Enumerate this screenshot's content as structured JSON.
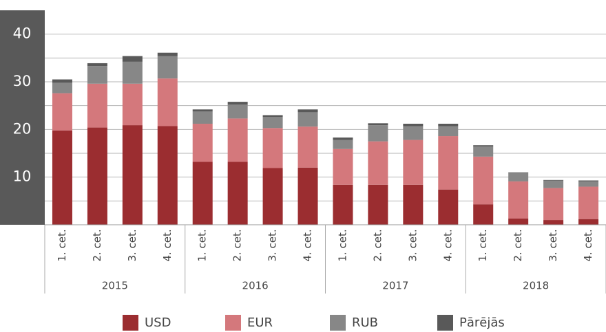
{
  "chart_data": {
    "type": "stacked_bar",
    "categories": [
      "1. cet.",
      "2. cet.",
      "3. cet.",
      "4. cet.",
      "1. cet.",
      "2. cet.",
      "3. cet.",
      "4. cet.",
      "1. cet.",
      "2. cet.",
      "3. cet.",
      "4. cet.",
      "1. cet.",
      "2. cet.",
      "3. cet.",
      "4. cet."
    ],
    "groups": [
      "2015",
      "2016",
      "2017",
      "2018"
    ],
    "series": [
      {
        "name": "USD",
        "color": "#9b2d30",
        "values": [
          19.8,
          20.4,
          20.9,
          20.7,
          13.2,
          13.2,
          11.9,
          12.0,
          8.4,
          8.4,
          8.4,
          7.4,
          4.3,
          1.3,
          1.0,
          1.2
        ]
      },
      {
        "name": "EUR",
        "color": "#d4787c",
        "values": [
          7.8,
          9.2,
          8.7,
          10.0,
          8.0,
          9.1,
          8.4,
          8.6,
          7.5,
          9.1,
          9.4,
          11.2,
          10.0,
          7.8,
          6.7,
          6.8
        ]
      },
      {
        "name": "RUB",
        "color": "#878787",
        "values": [
          2.2,
          3.7,
          4.6,
          4.7,
          2.6,
          2.9,
          2.3,
          3.0,
          1.9,
          3.4,
          2.9,
          2.1,
          2.1,
          1.8,
          1.6,
          1.1
        ]
      },
      {
        "name": "Pārējās",
        "color": "#595959",
        "values": [
          0.7,
          0.6,
          1.2,
          0.7,
          0.4,
          0.6,
          0.4,
          0.6,
          0.5,
          0.4,
          0.5,
          0.5,
          0.3,
          0.1,
          0.1,
          0.2
        ]
      }
    ],
    "ylim": [
      0,
      45
    ],
    "yticks": [
      10,
      20,
      30,
      40
    ],
    "minor_yticks": [
      5,
      15,
      25,
      35
    ],
    "grid": true,
    "legend": "bottom"
  }
}
